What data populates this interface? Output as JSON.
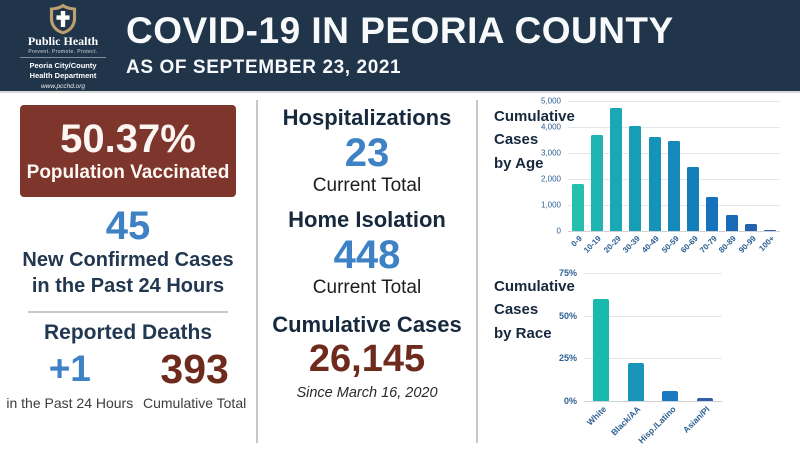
{
  "colors": {
    "header_bg": "#20344a",
    "vaccine_box_bg": "#7d352c",
    "accent_blue": "#3e81c5",
    "accent_maroon": "#6e2b1d",
    "navy_text": "#223850",
    "divider": "#c6c8ca",
    "gridline": "#e4e6e9",
    "tick_text": "#2d5f93"
  },
  "header": {
    "title": "COVID-19 IN PEORIA COUNTY",
    "subtitle": "AS OF SEPTEMBER 23, 2021",
    "logo": {
      "org": "Public Health",
      "tagline": "Prevent. Promote. Protect.",
      "dept_line1": "Peoria City/County",
      "dept_line2": "Health Department",
      "website": "www.pcchd.org"
    }
  },
  "vaccination": {
    "value": "50.37%",
    "label": "Population Vaccinated"
  },
  "new_cases": {
    "value": "45",
    "label_line1": "New Confirmed Cases",
    "label_line2": "in the Past 24 Hours"
  },
  "deaths": {
    "heading": "Reported Deaths",
    "recent_value": "+1",
    "recent_label": "in the Past 24 Hours",
    "cumulative_value": "393",
    "cumulative_label": "Cumulative Total"
  },
  "hospitalizations": {
    "heading": "Hospitalizations",
    "value": "23",
    "label": "Current Total"
  },
  "home_isolation": {
    "heading": "Home Isolation",
    "value": "448",
    "label": "Current Total"
  },
  "cumulative_cases": {
    "heading": "Cumulative Cases",
    "value": "26,145",
    "label": "Since March 16, 2020"
  },
  "chart_data": [
    {
      "type": "bar",
      "title": "Cumulative Cases by Age",
      "title_lines": [
        "Cumulative",
        "Cases",
        "by Age"
      ],
      "categories": [
        "0-9",
        "10-19",
        "20-29",
        "30-39",
        "40-49",
        "50-59",
        "60-69",
        "70-79",
        "80-89",
        "90-99",
        "100+"
      ],
      "values": [
        1800,
        3700,
        4750,
        4050,
        3600,
        3450,
        2450,
        1300,
        620,
        260,
        30
      ],
      "ylim": [
        0,
        5000
      ],
      "yticks": [
        "5,000",
        "4,000",
        "3,000",
        "2,000",
        "1,000",
        "0"
      ],
      "grid": true,
      "legend": "none",
      "bar_colors": [
        "#25bfad",
        "#1fb3b1",
        "#1aa9b4",
        "#179eb6",
        "#1593b8",
        "#1489ba",
        "#147ebb",
        "#1473bc",
        "#1a69b6",
        "#2363ae",
        "#2e5ca6"
      ]
    },
    {
      "type": "bar",
      "title": "Cumulative Cases by Race",
      "title_lines": [
        "Cumulative",
        "Cases",
        "by Race"
      ],
      "categories": [
        "White",
        "Black/AA",
        "Hisp./Latino",
        "Asian/PI"
      ],
      "values": [
        60,
        22,
        6,
        2
      ],
      "unit": "%",
      "ylim": [
        0,
        75
      ],
      "yticks": [
        "75%",
        "50%",
        "25%",
        "0%"
      ],
      "grid": true,
      "legend": "none",
      "bar_colors": [
        "#19b9ae",
        "#1795ba",
        "#1b79c2",
        "#2f5fa9"
      ]
    }
  ]
}
